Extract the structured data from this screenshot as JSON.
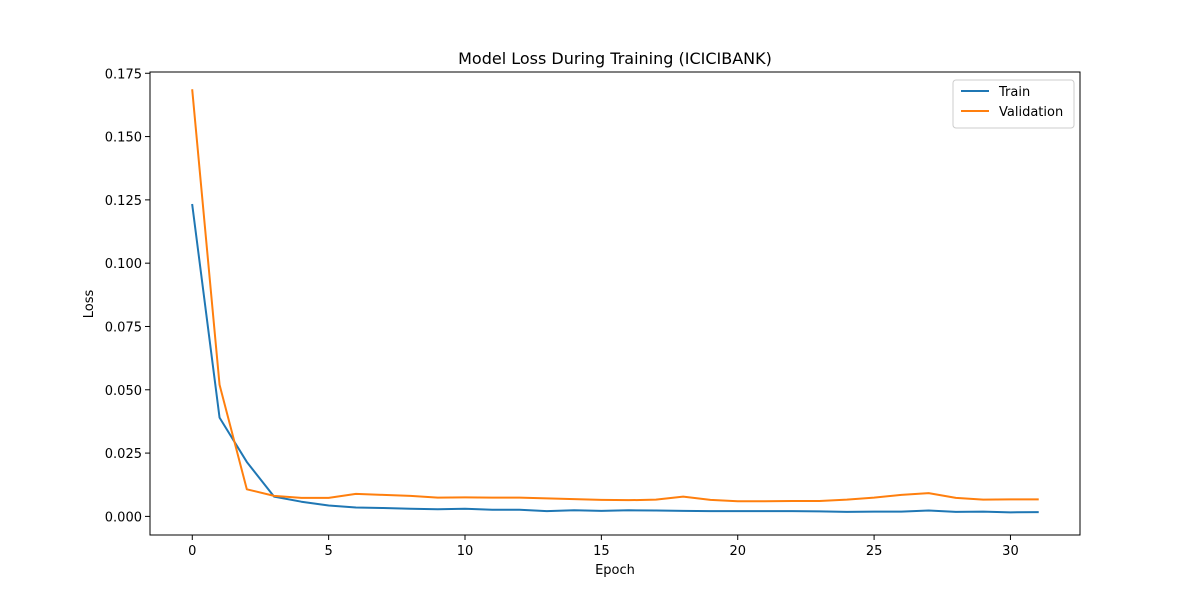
{
  "chart_data": {
    "type": "line",
    "title": "Model Loss During Training (ICICIBANK)",
    "xlabel": "Epoch",
    "ylabel": "Loss",
    "xlim": [
      -1.55,
      32.55
    ],
    "ylim": [
      -0.00735,
      0.1755
    ],
    "x_ticks": [
      0,
      5,
      10,
      15,
      20,
      25,
      30
    ],
    "y_ticks": [
      0.0,
      0.025,
      0.05,
      0.075,
      0.1,
      0.125,
      0.15,
      0.175
    ],
    "y_tick_labels": [
      "0.000",
      "0.025",
      "0.050",
      "0.075",
      "0.100",
      "0.125",
      "0.150",
      "0.175"
    ],
    "x": [
      0,
      1,
      2,
      3,
      4,
      5,
      6,
      7,
      8,
      9,
      10,
      11,
      12,
      13,
      14,
      15,
      16,
      17,
      18,
      19,
      20,
      21,
      22,
      23,
      24,
      25,
      26,
      27,
      28,
      29,
      30,
      31
    ],
    "grid": false,
    "legend_position": "top-right",
    "series": [
      {
        "name": "Train",
        "color": "#1f77b4",
        "values": [
          0.123,
          0.039,
          0.0215,
          0.0078,
          0.0058,
          0.0043,
          0.0035,
          0.0033,
          0.003,
          0.0028,
          0.003,
          0.0026,
          0.0026,
          0.0021,
          0.0024,
          0.0022,
          0.0024,
          0.0023,
          0.0022,
          0.0021,
          0.0021,
          0.0021,
          0.0021,
          0.002,
          0.0018,
          0.0019,
          0.0019,
          0.0023,
          0.0018,
          0.0019,
          0.0016,
          0.0017
        ]
      },
      {
        "name": "Validation",
        "color": "#ff7f0e",
        "values": [
          0.1683,
          0.052,
          0.0107,
          0.0081,
          0.0073,
          0.0073,
          0.0089,
          0.0085,
          0.0081,
          0.0074,
          0.0075,
          0.0074,
          0.0074,
          0.0071,
          0.0068,
          0.0065,
          0.0064,
          0.0066,
          0.0078,
          0.0065,
          0.006,
          0.006,
          0.0061,
          0.0061,
          0.0066,
          0.0074,
          0.0085,
          0.0092,
          0.0073,
          0.0066,
          0.0067,
          0.0067
        ]
      }
    ]
  }
}
